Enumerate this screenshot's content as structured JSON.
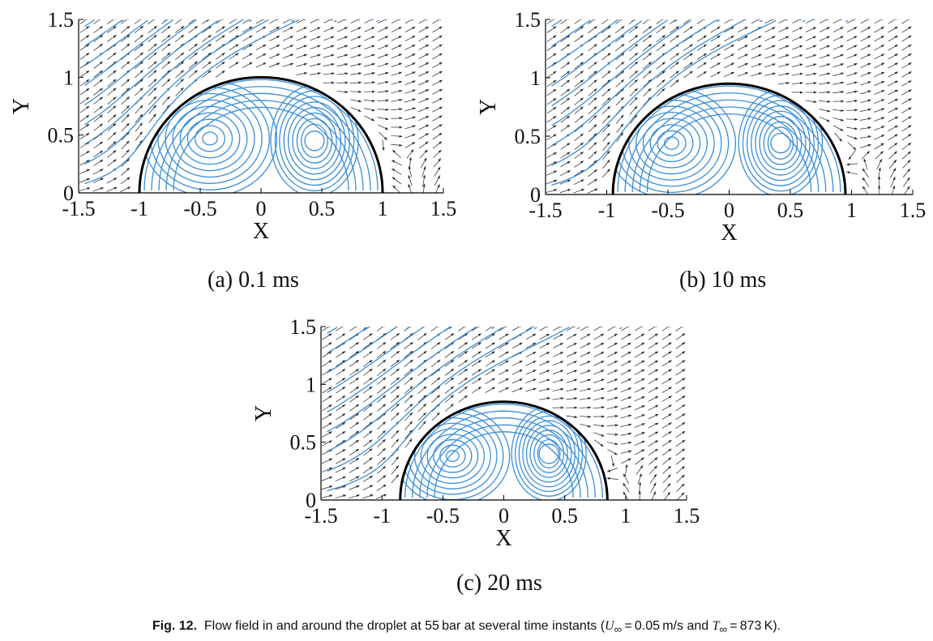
{
  "figure": {
    "label": "Fig. 12.",
    "caption_text": "Flow field in and around the droplet at 55 bar at several time instants (",
    "caption_u": "U",
    "caption_u_sub": "∞",
    "caption_u_val": " = 0.05 m/s and ",
    "caption_t": "T",
    "caption_t_sub": "∞",
    "caption_t_val": " = 873 K)."
  },
  "colors": {
    "streamline": "#3a8ed8",
    "vector": "#222222",
    "interface": "#000000"
  },
  "chart_data": [
    {
      "type": "vector-field",
      "caption": "(a) 0.1 ms",
      "xlabel": "X",
      "ylabel": "Y",
      "xlim": [
        -1.5,
        1.5
      ],
      "ylim": [
        0,
        1.5
      ],
      "xticks": [
        "-1.5",
        "-1",
        "-0.5",
        "0",
        "0.5",
        "1",
        "1.5"
      ],
      "yticks": [
        "0",
        "0.5",
        "1",
        "1.5"
      ],
      "droplet_radius": 1.0,
      "vortices": [
        {
          "x": -0.42,
          "y": 0.47
        },
        {
          "x": 0.44,
          "y": 0.45
        }
      ]
    },
    {
      "type": "vector-field",
      "caption": "(b) 10 ms",
      "xlabel": "X",
      "ylabel": "Y",
      "xlim": [
        -1.5,
        1.5
      ],
      "ylim": [
        0,
        1.5
      ],
      "xticks": [
        "-1.5",
        "-1",
        "-0.5",
        "0",
        "0.5",
        "1",
        "1.5"
      ],
      "yticks": [
        "0",
        "0.5",
        "1",
        "1.5"
      ],
      "droplet_radius": 0.95,
      "vortices": [
        {
          "x": -0.47,
          "y": 0.44
        },
        {
          "x": 0.42,
          "y": 0.44
        }
      ]
    },
    {
      "type": "vector-field",
      "caption": "(c) 20 ms",
      "xlabel": "X",
      "ylabel": "Y",
      "xlim": [
        -1.5,
        1.5
      ],
      "ylim": [
        0,
        1.5
      ],
      "xticks": [
        "-1.5",
        "-1",
        "-0.5",
        "0",
        "0.5",
        "1",
        "1.5"
      ],
      "yticks": [
        "0",
        "0.5",
        "1",
        "1.5"
      ],
      "droplet_radius": 0.85,
      "vortices": [
        {
          "x": -0.42,
          "y": 0.38
        },
        {
          "x": 0.37,
          "y": 0.4
        }
      ]
    }
  ]
}
